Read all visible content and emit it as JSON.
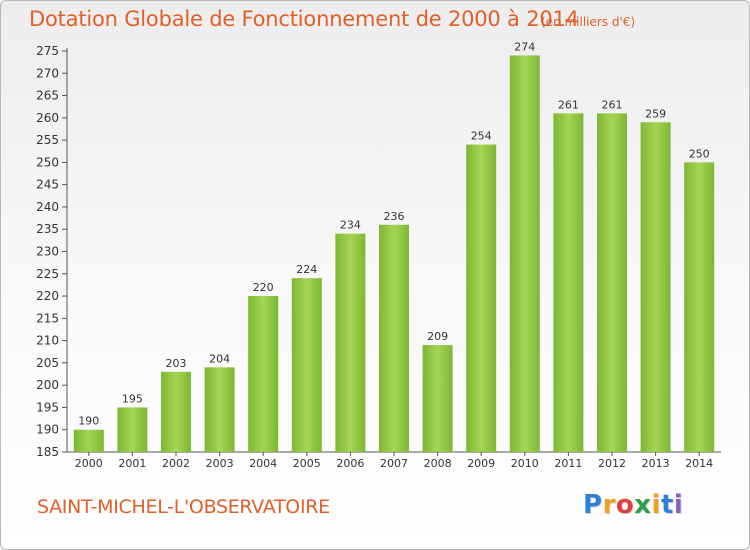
{
  "header": {
    "title": "Dotation Globale de Fonctionnement de 2000 à 2014",
    "unit_note": "(en milliers d'€)"
  },
  "footer": {
    "commune": "SAINT-MICHEL-L'OBSERVATOIRE",
    "logo": {
      "letters": [
        "P",
        "r",
        "o",
        "x",
        "i",
        "t",
        "i"
      ],
      "colors": [
        "#2e7fd6",
        "#f0a020",
        "#e04040",
        "#2e9e4a",
        "#f0a020",
        "#2e7fd6",
        "#8a5cc8"
      ]
    }
  },
  "chart_data": {
    "type": "bar",
    "title": "Dotation Globale de Fonctionnement de 2000 à 2014",
    "subtitle": "(en milliers d'€)",
    "categories": [
      "2000",
      "2001",
      "2002",
      "2003",
      "2004",
      "2005",
      "2006",
      "2007",
      "2008",
      "2009",
      "2010",
      "2011",
      "2012",
      "2013",
      "2014"
    ],
    "values": [
      190,
      195,
      203,
      204,
      220,
      224,
      234,
      236,
      209,
      254,
      274,
      261,
      261,
      259,
      250
    ],
    "data_labels": [
      "190",
      "195",
      "203",
      "204",
      "220",
      "224",
      "234",
      "236",
      "209",
      "254",
      "274",
      "261",
      "261",
      "259",
      "250"
    ],
    "xlabel": "",
    "ylabel": "",
    "ylim": [
      185,
      275
    ],
    "yticks": [
      185,
      190,
      195,
      200,
      205,
      210,
      215,
      220,
      225,
      230,
      235,
      240,
      245,
      250,
      255,
      260,
      265,
      270,
      275
    ],
    "grid": false,
    "legend": "none",
    "bar_color": "#7db734",
    "bar_color_light": "#a6d455",
    "text_color": "#e0602a"
  }
}
